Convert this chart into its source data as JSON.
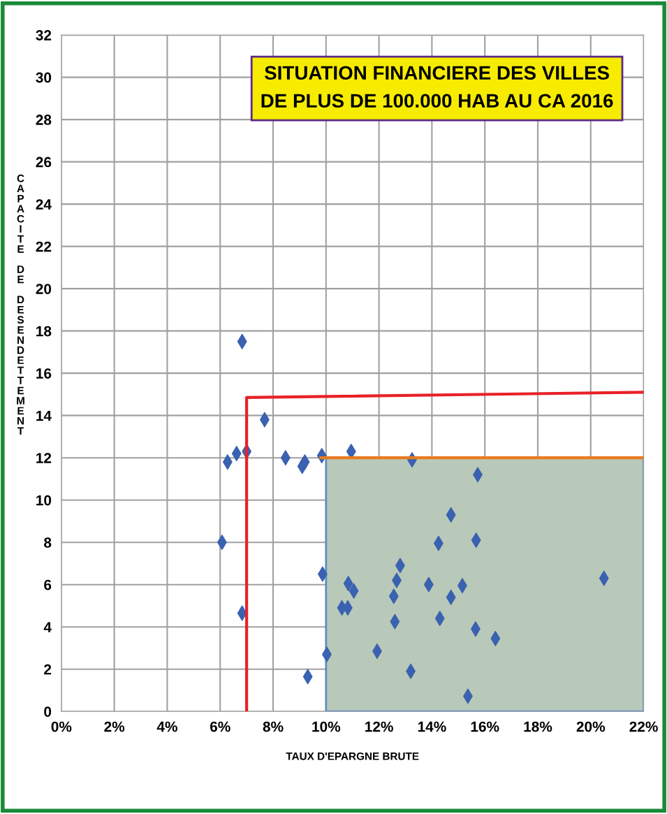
{
  "chart_data": {
    "type": "scatter",
    "title": "SITUATION FINANCIERE DES VILLES\nDE PLUS DE 100.000 HAB AU CA 2016",
    "xlabel": "TAUX D'EPARGNE BRUTE",
    "ylabel": "CAPACITE DE DESENDETTEMENT",
    "xlim": [
      0,
      22
    ],
    "ylim": [
      0,
      32
    ],
    "xticks": [
      {
        "value": 0,
        "label": "0%"
      },
      {
        "value": 2,
        "label": "2%"
      },
      {
        "value": 4,
        "label": "4%"
      },
      {
        "value": 6,
        "label": "6%"
      },
      {
        "value": 8,
        "label": "8%"
      },
      {
        "value": 10,
        "label": "10%"
      },
      {
        "value": 12,
        "label": "12%"
      },
      {
        "value": 14,
        "label": "14%"
      },
      {
        "value": 16,
        "label": "16%"
      },
      {
        "value": 18,
        "label": "18%"
      },
      {
        "value": 20,
        "label": "20%"
      },
      {
        "value": 22,
        "label": "22%"
      }
    ],
    "yticks": [
      0,
      2,
      4,
      6,
      8,
      10,
      12,
      14,
      16,
      18,
      20,
      22,
      24,
      26,
      28,
      30,
      32
    ],
    "grid": true,
    "series": [
      {
        "type": "area",
        "color": "#b9c9b9",
        "x": [
          10,
          22
        ],
        "values": [
          12,
          12
        ]
      },
      {
        "type": "line",
        "color": "#e82127",
        "x": [
          7,
          7,
          22
        ],
        "values": [
          0,
          14.85,
          15.1
        ]
      },
      {
        "type": "line",
        "color": "#e87b22",
        "x": [
          9.8,
          22
        ],
        "values": [
          12,
          12
        ]
      },
      {
        "marker": "diamond",
        "color": "#3a62b0",
        "x": [
          6.83,
          7.68,
          6.28,
          6.62,
          7.0,
          8.47,
          9.1,
          9.2,
          9.84,
          10.95,
          13.25,
          15.73,
          6.07,
          6.83,
          9.87,
          10.03,
          9.31,
          10.84,
          11.05,
          10.6,
          10.82,
          11.93,
          12.8,
          12.67,
          12.56,
          12.6,
          13.2,
          13.88,
          14.25,
          14.72,
          14.72,
          14.3,
          15.15,
          15.67,
          15.65,
          16.4,
          15.36,
          20.5
        ],
        "values": [
          17.5,
          13.8,
          11.8,
          12.2,
          12.3,
          12.0,
          11.6,
          11.8,
          12.1,
          12.3,
          11.9,
          11.2,
          8.0,
          4.65,
          6.5,
          2.7,
          1.65,
          6.05,
          5.7,
          4.9,
          4.9,
          2.85,
          6.9,
          6.2,
          5.45,
          4.25,
          1.9,
          6.0,
          7.95,
          9.3,
          5.4,
          4.4,
          5.95,
          8.1,
          3.9,
          3.45,
          0.72,
          6.3
        ]
      }
    ]
  }
}
